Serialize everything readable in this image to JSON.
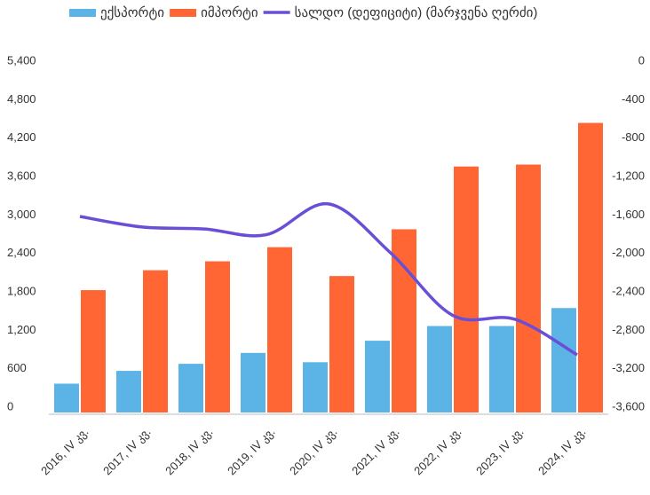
{
  "chart_data": {
    "type": "bar-line",
    "categories": [
      "2016, IV კვ.",
      "2017, IV კვ.",
      "2018, IV კვ.",
      "2019, IV კვ.",
      "2020, IV კვ.",
      "2021, IV კვ.",
      "2022, IV კვ.",
      "2023, IV კვ.",
      "2024, IV კვ."
    ],
    "series": [
      {
        "name": "ექსპორტი",
        "color": "#5bb4e5",
        "type": "bar",
        "values": [
          450,
          650,
          760,
          930,
          785,
          1120,
          1350,
          1350,
          1630
        ]
      },
      {
        "name": "იმპორტი",
        "color": "#ff6633",
        "type": "bar",
        "values": [
          1910,
          2220,
          2360,
          2580,
          2130,
          2860,
          3840,
          3870,
          4520
        ]
      },
      {
        "name": "სალდო (დეფიციტი) (მარჯვენა ღერძი)",
        "color": "#6a4fd6",
        "type": "line",
        "axis": "y2",
        "values": [
          -1560,
          -1670,
          -1690,
          -1750,
          -1430,
          -1940,
          -2590,
          -2630,
          -3000
        ]
      }
    ],
    "ylim": [
      0,
      5400
    ],
    "yticks": [
      0,
      600,
      {
        "value": 1200,
        "label": "1,200"
      },
      {
        "value": 1800,
        "label": "1,800"
      },
      {
        "value": 2400,
        "label": "2,400"
      },
      {
        "value": 3000,
        "label": "3,000"
      },
      {
        "value": 3600,
        "label": "3,600"
      },
      {
        "value": 4200,
        "label": "4,200"
      },
      {
        "value": 4800,
        "label": "4,800"
      },
      {
        "value": 5400,
        "label": "5,400"
      }
    ],
    "y2lim": [
      -3600,
      0
    ],
    "y2ticks": [
      {
        "value": -3600,
        "label": "-3,600"
      },
      {
        "value": -3200,
        "label": "-3,200"
      },
      {
        "value": -2800,
        "label": "-2,800"
      },
      {
        "value": -2400,
        "label": "-2,400"
      },
      {
        "value": -2000,
        "label": "-2,000"
      },
      {
        "value": -1600,
        "label": "-1,600"
      },
      {
        "value": -1200,
        "label": "-1,200"
      },
      -800,
      -400,
      0
    ],
    "legend": "top"
  }
}
